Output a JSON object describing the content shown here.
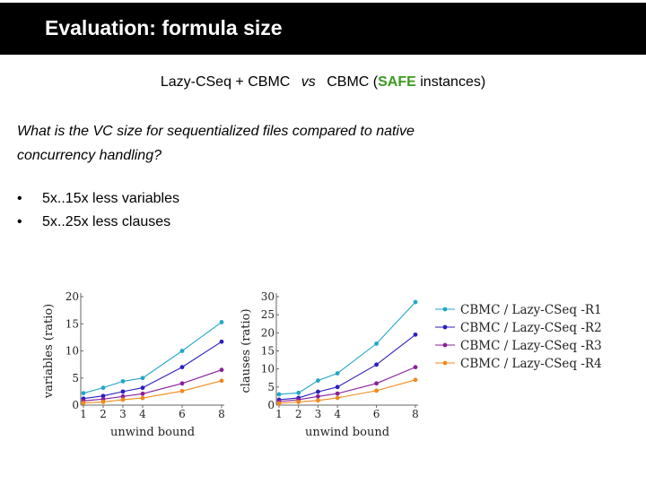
{
  "slide": {
    "title": "Evaluation: formula size",
    "subtitle": {
      "left": "Lazy-CSeq + CBMC",
      "vs": "vs",
      "right_prefix": "CBMC (",
      "safe": "SAFE",
      "right_suffix": " instances)"
    },
    "question": "What is the VC size for sequentialized files compared to native concurrency handling?",
    "bullets": [
      "5x..15x less variables",
      "5x..25x less clauses"
    ],
    "colors": {
      "title_bar": "#000000",
      "safe": "#3a9a1e"
    }
  },
  "chart_data": [
    {
      "type": "line",
      "ylabel": "variables (ratio)",
      "xlabel": "unwind bound",
      "x": [
        1,
        2,
        3,
        4,
        6,
        8
      ],
      "xticks": [
        1,
        2,
        3,
        4,
        6,
        8
      ],
      "ylim": [
        0,
        20
      ],
      "yticks": [
        0,
        5,
        10,
        15,
        20
      ],
      "grid": false,
      "series": [
        {
          "name": "CBMC / Lazy-CSeq -R1",
          "color": "#22a7c9",
          "values": [
            2.2,
            3.2,
            4.4,
            5.0,
            10.0,
            15.3
          ]
        },
        {
          "name": "CBMC / Lazy-CSeq -R2",
          "color": "#2b1fc0",
          "values": [
            1.2,
            1.7,
            2.5,
            3.2,
            7.0,
            11.7
          ]
        },
        {
          "name": "CBMC / Lazy-CSeq -R3",
          "color": "#8a1f9a",
          "values": [
            0.8,
            1.1,
            1.6,
            2.1,
            4.0,
            6.5
          ]
        },
        {
          "name": "CBMC / Lazy-CSeq -R4",
          "color": "#f08a1c",
          "values": [
            0.4,
            0.6,
            1.0,
            1.3,
            2.6,
            4.5
          ]
        }
      ]
    },
    {
      "type": "line",
      "ylabel": "clauses (ratio)",
      "xlabel": "unwind bound",
      "x": [
        1,
        2,
        3,
        4,
        6,
        8
      ],
      "xticks": [
        1,
        2,
        3,
        4,
        6,
        8
      ],
      "ylim": [
        0,
        30
      ],
      "yticks": [
        0,
        5,
        10,
        15,
        20,
        25,
        30
      ],
      "grid": false,
      "series": [
        {
          "name": "CBMC / Lazy-CSeq -R1",
          "color": "#22a7c9",
          "values": [
            3.0,
            3.4,
            6.8,
            8.8,
            17.0,
            28.5
          ]
        },
        {
          "name": "CBMC / Lazy-CSeq -R2",
          "color": "#2b1fc0",
          "values": [
            1.5,
            2.0,
            3.7,
            5.0,
            11.2,
            19.5
          ]
        },
        {
          "name": "CBMC / Lazy-CSeq -R3",
          "color": "#8a1f9a",
          "values": [
            1.0,
            1.5,
            2.4,
            3.2,
            6.0,
            10.5
          ]
        },
        {
          "name": "CBMC / Lazy-CSeq -R4",
          "color": "#f08a1c",
          "values": [
            0.5,
            0.9,
            1.3,
            2.0,
            4.0,
            7.0
          ]
        }
      ]
    }
  ],
  "legend": {
    "position": "right",
    "entries": [
      {
        "label": "CBMC / Lazy-CSeq -R1",
        "color": "#22a7c9"
      },
      {
        "label": "CBMC / Lazy-CSeq -R2",
        "color": "#2b1fc0"
      },
      {
        "label": "CBMC / Lazy-CSeq -R3",
        "color": "#8a1f9a"
      },
      {
        "label": "CBMC / Lazy-CSeq -R4",
        "color": "#f08a1c"
      }
    ]
  }
}
